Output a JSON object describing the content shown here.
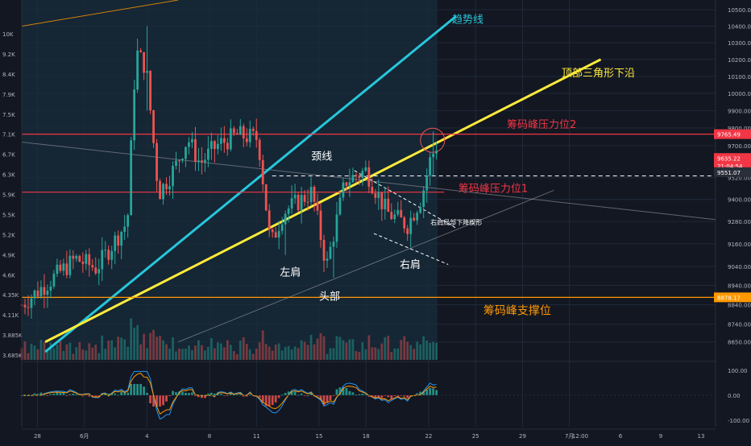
{
  "chart_data": {
    "type": "candlestick",
    "title": "",
    "price_axis": {
      "scale": "log",
      "range": [
        8560,
        10560
      ],
      "right_ticks": [
        10500,
        10400,
        10300,
        10200,
        10100,
        10000,
        9900,
        9800,
        9700,
        9520,
        9400,
        9280,
        9160,
        9040,
        8940,
        8840,
        8740,
        8650
      ],
      "left_ticks": [
        "10K",
        "9.2K",
        "8.4K",
        "7.9K",
        "7.5K",
        "7.1K",
        "6.7K",
        "6.3K",
        "5.9K",
        "5.5K",
        "5.2K",
        "4.9K",
        "4.6K",
        "4.35K",
        "4.11K",
        "3.885K",
        "3.685K"
      ],
      "price_labels": [
        {
          "text": "9765.49",
          "value": 9765,
          "color": "#f23645"
        },
        {
          "text": "9635.22",
          "value": 9630,
          "color": "#f23645"
        },
        {
          "text": "21:04:54",
          "value": 9585,
          "color": "#f23645"
        },
        {
          "text": "9551.07",
          "value": 9551,
          "color": "#2a2e39"
        },
        {
          "text": "8878.17",
          "value": 8878,
          "color": "#ff9800"
        }
      ]
    },
    "oscillator_axis": {
      "range": [
        -125,
        125
      ],
      "ticks": [
        "100.00",
        "0.00",
        "-100.00"
      ]
    },
    "time_axis": {
      "range": [
        0,
        72
      ],
      "ticks": [
        {
          "label": "28",
          "t": 2
        },
        {
          "label": "6月",
          "t": 8
        },
        {
          "label": "4",
          "t": 16
        },
        {
          "label": "8",
          "t": 24
        },
        {
          "label": "11",
          "t": 30
        },
        {
          "label": "15",
          "t": 38
        },
        {
          "label": "18",
          "t": 44
        },
        {
          "label": "22",
          "t": 52
        },
        {
          "label": "25",
          "t": 58
        },
        {
          "label": "29",
          "t": 64
        },
        {
          "label": "7月",
          "t": 70
        }
      ]
    },
    "candles": {
      "t_start": 0,
      "t_end": 53,
      "count": 130,
      "segments": [
        {
          "end": 0.0,
          "price": 8840
        },
        {
          "end": 0.13,
          "price": 9080
        },
        {
          "end": 0.18,
          "price": 9030
        },
        {
          "end": 0.255,
          "price": 9280
        },
        {
          "end": 0.275,
          "price": 10250
        },
        {
          "end": 0.3,
          "price": 10150
        },
        {
          "end": 0.33,
          "price": 9430
        },
        {
          "end": 0.37,
          "price": 9580
        },
        {
          "end": 0.4,
          "price": 9740
        },
        {
          "end": 0.43,
          "price": 9600
        },
        {
          "end": 0.47,
          "price": 9700
        },
        {
          "end": 0.52,
          "price": 9760
        },
        {
          "end": 0.57,
          "price": 9740
        },
        {
          "end": 0.6,
          "price": 9150
        },
        {
          "end": 0.63,
          "price": 9330
        },
        {
          "end": 0.7,
          "price": 9440
        },
        {
          "end": 0.735,
          "price": 9040
        },
        {
          "end": 0.78,
          "price": 9500
        },
        {
          "end": 0.83,
          "price": 9560
        },
        {
          "end": 0.88,
          "price": 9330
        },
        {
          "end": 0.93,
          "price": 9260
        },
        {
          "end": 0.965,
          "price": 9420
        },
        {
          "end": 0.985,
          "price": 9620
        },
        {
          "end": 1.0,
          "price": 9700
        }
      ],
      "wicks": [
        {
          "t": 16.0,
          "high": 10400,
          "low": 9900
        },
        {
          "t": 33.5,
          "high": 9140,
          "low": 9100
        },
        {
          "t": 39.8,
          "high": 9020,
          "low": 8980
        },
        {
          "t": 52.5,
          "high": 9780,
          "low": 9530
        }
      ]
    },
    "lines": [
      {
        "name": "趋势线",
        "color": "#26c6da",
        "from": {
          "t": 3.0,
          "price": 8600
        },
        "to": {
          "t": 55.5,
          "price": 10460
        }
      },
      {
        "name": "顶部三角形下沿",
        "color": "#ffeb3b",
        "from": {
          "t": 3.0,
          "price": 8650
        },
        "to": {
          "t": 74.0,
          "price": 10200
        }
      },
      {
        "name": "筹码峰压力位2",
        "color": "#f23645",
        "from": {
          "t": 0,
          "price": 9765
        },
        "to": {
          "t": 91,
          "price": 9765
        }
      },
      {
        "name": "筹码峰压力位1",
        "color": "#f23645",
        "from": {
          "t": 0,
          "price": 9440
        },
        "to": {
          "t": 54,
          "price": 9440
        }
      },
      {
        "name": "筹码峰支撑位",
        "color": "#ff9800",
        "from": {
          "t": 0,
          "price": 8878
        },
        "to": {
          "t": 91,
          "price": 8878
        }
      },
      {
        "name": "颈线",
        "color": "#ffffff",
        "style": "dashed",
        "from": {
          "t": 32.0,
          "price": 9530
        },
        "to": {
          "t": 91,
          "price": 9530
        }
      }
    ],
    "pattern": {
      "label": "右肩局部下降楔形",
      "upper": {
        "from": {
          "t": 42.5,
          "price": 9560
        },
        "to": {
          "t": 55.5,
          "price": 9245
        }
      },
      "lower": {
        "from": {
          "t": 45.0,
          "price": 9215
        },
        "to": {
          "t": 54.5,
          "price": 9050
        }
      }
    },
    "annotations": [
      {
        "text": "趋势线",
        "t": 55.0,
        "price": 10420,
        "color": "#26c6da",
        "size": 13
      },
      {
        "text": "顶部三角形下沿",
        "t": 69.0,
        "price": 10100,
        "color": "#ffeb3b",
        "size": 13
      },
      {
        "text": "筹码峰压力位2",
        "t": 62.0,
        "price": 9800,
        "color": "#f23645",
        "size": 13
      },
      {
        "text": "筹码峰压力位1",
        "t": 55.8,
        "price": 9440,
        "color": "#f23645",
        "size": 13
      },
      {
        "text": "筹码峰支撑位",
        "t": 59.0,
        "price": 8790,
        "color": "#ff9800",
        "size": 14
      },
      {
        "text": "颈线",
        "t": 37.0,
        "price": 9620,
        "color": "#ffffff",
        "size": 13
      },
      {
        "text": "左肩",
        "t": 33.0,
        "price": 8990,
        "color": "#ffffff",
        "size": 13
      },
      {
        "text": "头部",
        "t": 38.0,
        "price": 8865,
        "color": "#ffffff",
        "size": 13
      },
      {
        "text": "右肩",
        "t": 48.3,
        "price": 9030,
        "color": "#ffffff",
        "size": 13
      }
    ]
  }
}
